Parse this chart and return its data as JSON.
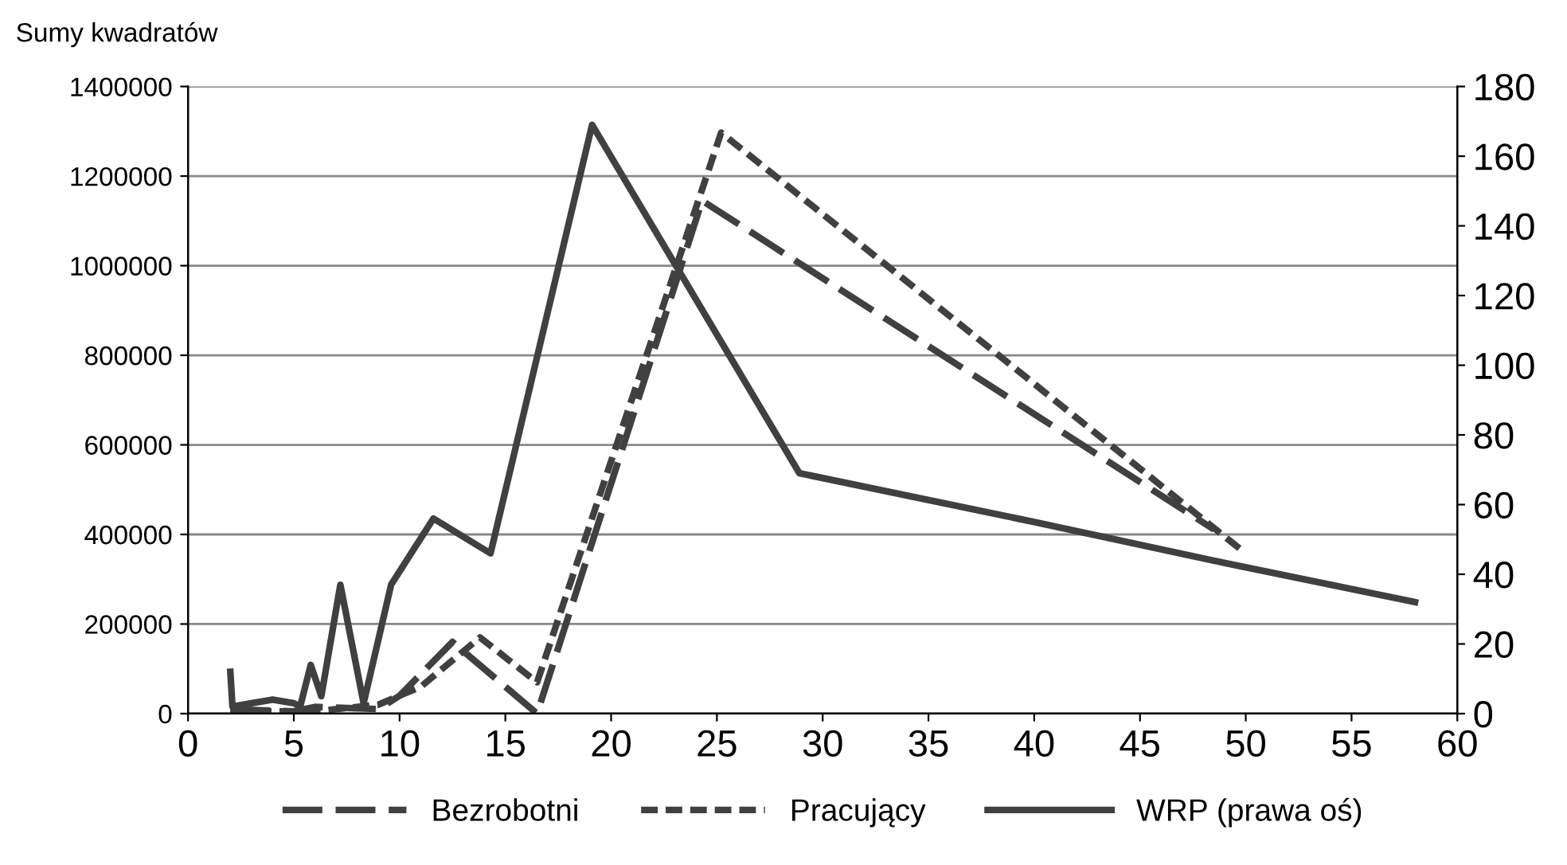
{
  "chart_data": {
    "type": "line",
    "ylabel": "Sumy kwadratów",
    "xlim": [
      0,
      60
    ],
    "xticks": [
      0,
      5,
      10,
      15,
      20,
      25,
      30,
      35,
      40,
      45,
      50,
      55,
      60
    ],
    "ylim": [
      0,
      1400000
    ],
    "yticks": [
      0,
      200000,
      400000,
      600000,
      800000,
      1000000,
      1200000,
      1400000
    ],
    "y2lim": [
      0,
      180
    ],
    "y2ticks": [
      0,
      20,
      40,
      60,
      80,
      100,
      120,
      140,
      160,
      180
    ],
    "grid": "y",
    "legend": "bottom",
    "marker": "none",
    "series": [
      {
        "name": "Bezrobotni",
        "color": "#404040",
        "line_style": "dashed",
        "x": [
          2,
          5,
          6,
          9,
          10,
          12.5,
          16.5,
          24.3,
          48.5
        ],
        "values": [
          10000,
          5000,
          15000,
          10000,
          40000,
          160000,
          0,
          1145000,
          411000
        ]
      },
      {
        "name": "Pracujący",
        "color": "#404040",
        "line_style": "dotted",
        "x": [
          2,
          6,
          9,
          11,
          13.8,
          16.5,
          25.2,
          49.8
        ],
        "values": [
          5000,
          5000,
          20000,
          60000,
          170000,
          70000,
          1297000,
          365000
        ]
      },
      {
        "name": "WRP (prawa oś)",
        "color": "#404040",
        "line_style": "solid",
        "axis": "y2",
        "x": [
          2.0,
          2.1,
          3,
          4,
          5,
          5.3,
          5.8,
          6.3,
          7.2,
          8.3,
          9.6,
          11.6,
          14.3,
          19.1,
          28.9,
          40,
          49.2,
          58.0
        ],
        "values": [
          12,
          2,
          3,
          4,
          3,
          2,
          14,
          5,
          37,
          3,
          37,
          56,
          46,
          169,
          69,
          55,
          43,
          32
        ]
      }
    ]
  }
}
